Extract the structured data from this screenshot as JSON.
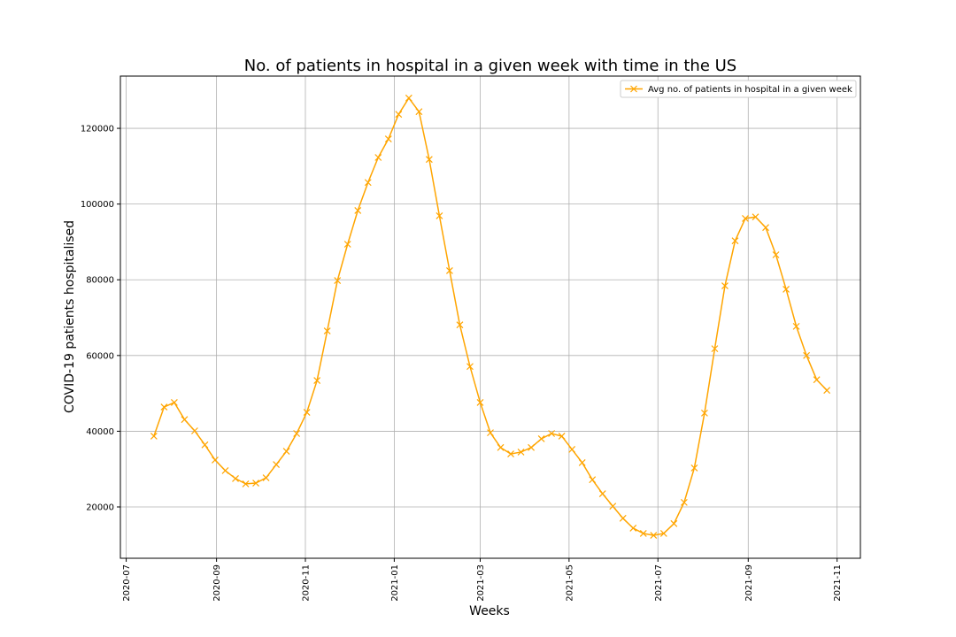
{
  "chart_data": {
    "type": "line",
    "title": "No. of patients in hospital in a given week with time in the US",
    "x_label": "Weeks",
    "y_label": "COVID-19 patients hospitalised",
    "x": [
      "2020-07-20",
      "2020-07-27",
      "2020-08-03",
      "2020-08-10",
      "2020-08-17",
      "2020-08-24",
      "2020-08-31",
      "2020-09-07",
      "2020-09-14",
      "2020-09-21",
      "2020-09-28",
      "2020-10-05",
      "2020-10-12",
      "2020-10-19",
      "2020-10-26",
      "2020-11-02",
      "2020-11-09",
      "2020-11-16",
      "2020-11-23",
      "2020-11-30",
      "2020-12-07",
      "2020-12-14",
      "2020-12-21",
      "2020-12-28",
      "2021-01-04",
      "2021-01-11",
      "2021-01-18",
      "2021-01-25",
      "2021-02-01",
      "2021-02-08",
      "2021-02-15",
      "2021-02-22",
      "2021-03-01",
      "2021-03-08",
      "2021-03-15",
      "2021-03-22",
      "2021-03-29",
      "2021-04-05",
      "2021-04-12",
      "2021-04-19",
      "2021-04-26",
      "2021-05-03",
      "2021-05-10",
      "2021-05-17",
      "2021-05-24",
      "2021-05-31",
      "2021-06-07",
      "2021-06-14",
      "2021-06-21",
      "2021-06-28",
      "2021-07-05",
      "2021-07-12",
      "2021-07-19",
      "2021-07-26",
      "2021-08-02",
      "2021-08-09",
      "2021-08-16",
      "2021-08-23",
      "2021-08-30",
      "2021-09-06",
      "2021-09-13",
      "2021-09-20",
      "2021-09-27",
      "2021-10-04",
      "2021-10-11",
      "2021-10-18",
      "2021-10-25"
    ],
    "series": [
      {
        "name": "Avg no. of patients in hospital in a given week",
        "color": "#ffa500",
        "values": [
          38700,
          46400,
          47600,
          43100,
          40100,
          36400,
          32400,
          29600,
          27500,
          26100,
          26300,
          27700,
          31200,
          34700,
          39400,
          45000,
          53400,
          66500,
          79800,
          89400,
          98300,
          105700,
          112300,
          117200,
          123700,
          128000,
          124400,
          111800,
          96900,
          82400,
          68100,
          57100,
          47600,
          39600,
          35700,
          34000,
          34500,
          35700,
          38000,
          39400,
          38700,
          35200,
          31700,
          27200,
          23500,
          20200,
          17000,
          14400,
          13000,
          12500,
          13000,
          15600,
          21200,
          30300,
          44800,
          61800,
          78400,
          90300,
          96200,
          96600,
          93800,
          86600,
          77500,
          67700,
          60000,
          53600,
          50800
        ]
      }
    ],
    "xlim": [
      "2020-06-27",
      "2021-11-17"
    ],
    "xticks": [
      "2020-07",
      "2020-09",
      "2020-11",
      "2021-01",
      "2021-03",
      "2021-05",
      "2021-07",
      "2021-09",
      "2021-11"
    ],
    "ylim": [
      6450,
      133800
    ],
    "yticks": [
      20000,
      40000,
      60000,
      80000,
      100000,
      120000
    ],
    "grid": true,
    "legend": "upper right"
  }
}
